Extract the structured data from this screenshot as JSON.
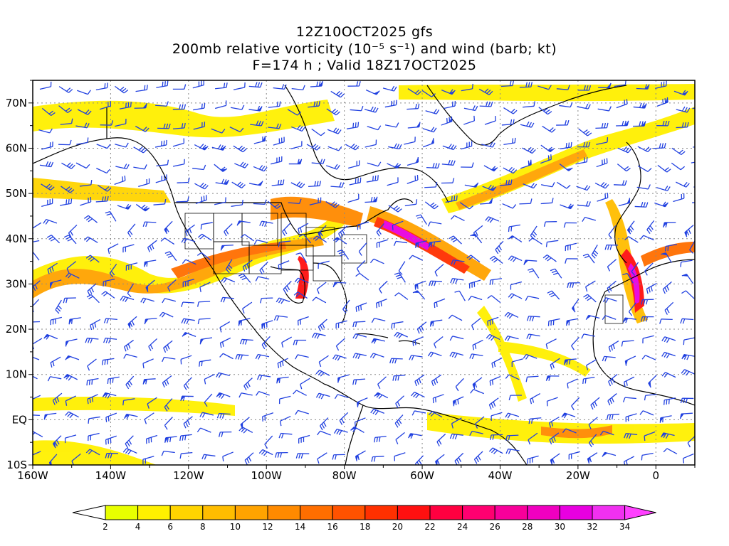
{
  "header": {
    "line1": "12Z10OCT2025 gfs",
    "line2": "200mb relative vorticity (10⁻⁵ s⁻¹) and wind (barb; kt)",
    "line3": "F=174 h ; Valid 18Z17OCT2025"
  },
  "map": {
    "lon_range": [
      -160,
      10
    ],
    "lat_range": [
      -10,
      75
    ],
    "lon_tick_labels": [
      "160W",
      "140W",
      "120W",
      "100W",
      "80W",
      "60W",
      "40W",
      "20W",
      "0"
    ],
    "lat_tick_labels": [
      "70N",
      "60N",
      "50N",
      "40N",
      "30N",
      "20N",
      "10N",
      "EQ",
      "10S"
    ],
    "grid": "dotted",
    "barb_color": "#2040e0",
    "coast_color": "#000000"
  },
  "colorbar": {
    "tick_labels": [
      "2",
      "4",
      "6",
      "8",
      "10",
      "12",
      "14",
      "16",
      "18",
      "20",
      "22",
      "24",
      "26",
      "28",
      "30",
      "32",
      "34"
    ],
    "colors": [
      "#e8ff00",
      "#fff000",
      "#ffd400",
      "#ffbd00",
      "#ffa300",
      "#ff8a00",
      "#ff6e00",
      "#ff5200",
      "#ff3000",
      "#ff1010",
      "#ff0040",
      "#ff0070",
      "#f8009a",
      "#f000c0",
      "#e800e0",
      "#f030f0"
    ],
    "under_color": "#ffffff",
    "over_color": "#ff40ff"
  }
}
